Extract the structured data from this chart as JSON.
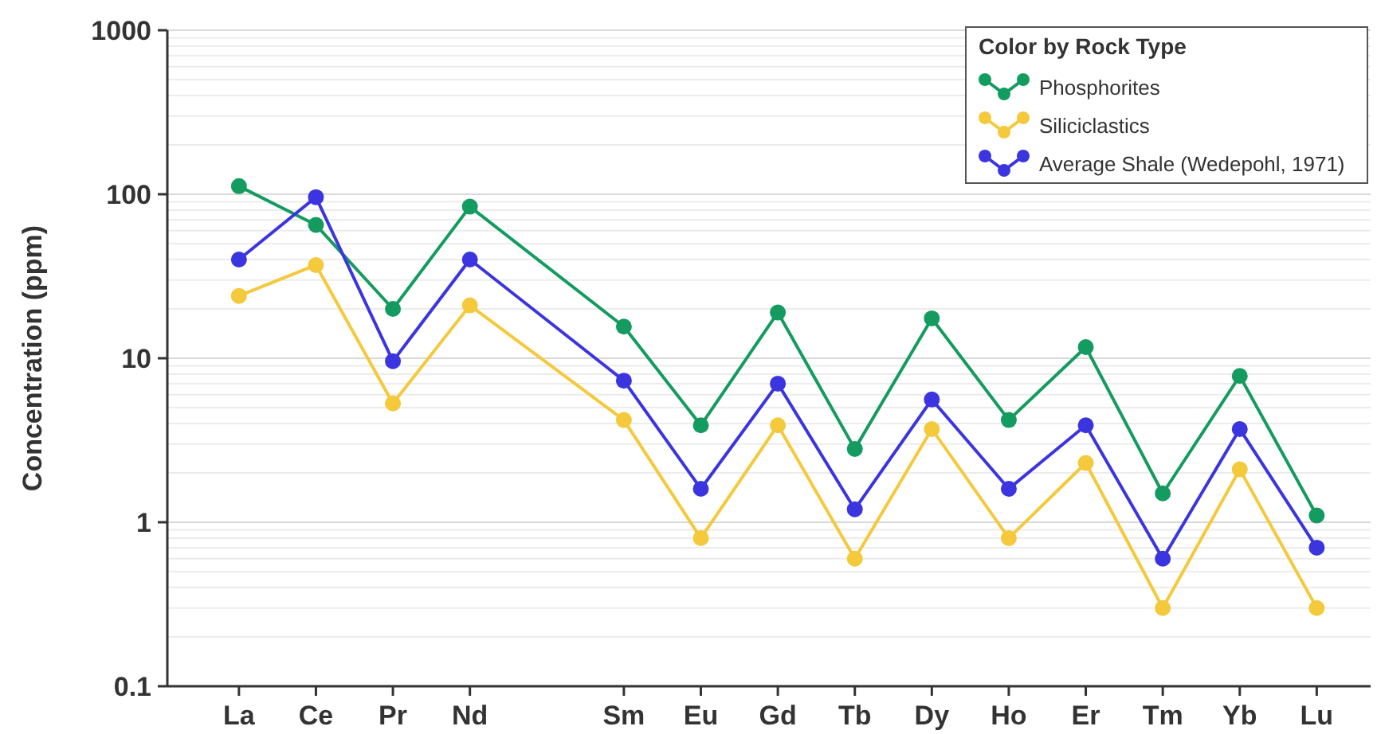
{
  "chart_data": {
    "type": "line",
    "ylabel": "Concentration (ppm)",
    "legend_title": "Color by Rock Type",
    "legend": "top right",
    "grid": "y",
    "marker": "circle",
    "line_style": "solid",
    "log": "y",
    "categories": [
      "La",
      "Ce",
      "Pr",
      "Nd",
      null,
      "Sm",
      "Eu",
      "Gd",
      "Tb",
      "Dy",
      "Ho",
      "Er",
      "Tm",
      "Yb",
      "Lu"
    ],
    "ylim": [
      0.1,
      1000
    ],
    "yticks": [
      0.1,
      {
        "value": 0.2,
        "label": null
      },
      {
        "value": 0.3,
        "label": null
      },
      {
        "value": 0.4,
        "label": null
      },
      {
        "value": 0.5,
        "label": null
      },
      {
        "value": 0.6,
        "label": null
      },
      {
        "value": 0.7,
        "label": null
      },
      {
        "value": 0.8,
        "label": null
      },
      {
        "value": 0.9,
        "label": null
      },
      1,
      {
        "value": 2,
        "label": null
      },
      {
        "value": 3,
        "label": null
      },
      {
        "value": 4,
        "label": null
      },
      {
        "value": 5,
        "label": null
      },
      {
        "value": 6,
        "label": null
      },
      {
        "value": 7,
        "label": null
      },
      {
        "value": 8,
        "label": null
      },
      {
        "value": 9,
        "label": null
      },
      10,
      {
        "value": 20,
        "label": null
      },
      {
        "value": 30,
        "label": null
      },
      {
        "value": 40,
        "label": null
      },
      {
        "value": 50,
        "label": null
      },
      {
        "value": 60,
        "label": null
      },
      {
        "value": 70,
        "label": null
      },
      {
        "value": 80,
        "label": null
      },
      {
        "value": 90,
        "label": null
      },
      100,
      {
        "value": 200,
        "label": null
      },
      {
        "value": 300,
        "label": null
      },
      {
        "value": 400,
        "label": null
      },
      {
        "value": 500,
        "label": null
      },
      {
        "value": 600,
        "label": null
      },
      {
        "value": 700,
        "label": null
      },
      {
        "value": 800,
        "label": null
      },
      {
        "value": 900,
        "label": null
      },
      1000
    ],
    "series": [
      {
        "name": "Phosphorites",
        "color": "#149b5f",
        "values": [
          112,
          65,
          20,
          84,
          null,
          15.6,
          3.9,
          19,
          2.8,
          17.5,
          4.2,
          11.7,
          1.5,
          7.8,
          1.1
        ]
      },
      {
        "name": "Siliciclastics",
        "color": "#f5c93c",
        "values": [
          24,
          37,
          5.3,
          21,
          null,
          4.2,
          0.8,
          3.9,
          0.6,
          3.7,
          0.8,
          2.3,
          0.3,
          2.1,
          0.3
        ]
      },
      {
        "name": "Average Shale (Wedepohl, 1971)",
        "color": "#3b35e0",
        "values": [
          40,
          96,
          9.6,
          40,
          null,
          7.3,
          1.6,
          7,
          1.2,
          5.6,
          1.6,
          3.9,
          0.6,
          3.7,
          0.7
        ]
      }
    ]
  }
}
